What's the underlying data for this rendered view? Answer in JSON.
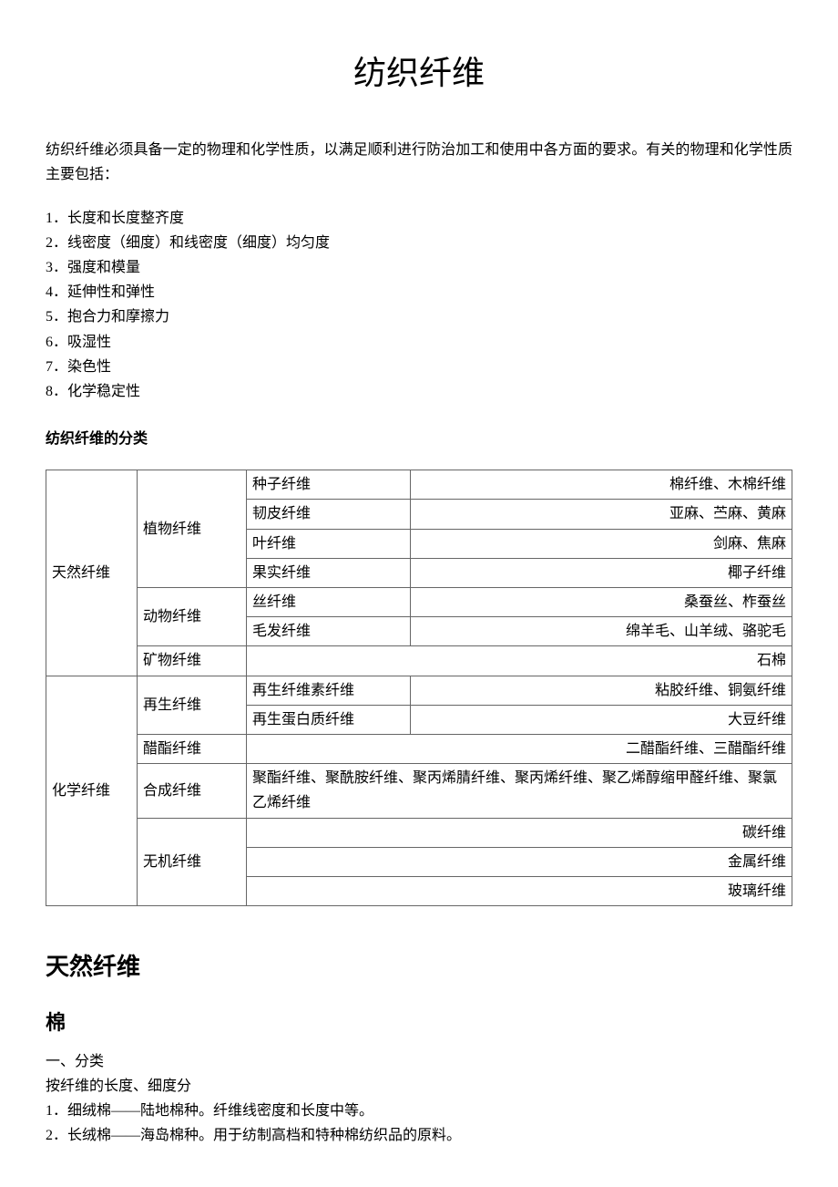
{
  "title": "纺织纤维",
  "intro": "纺织纤维必须具备一定的物理和化学性质，以满足顺利进行防治加工和使用中各方面的要求。有关的物理和化学性质主要包括：",
  "properties": [
    "1．长度和长度整齐度",
    "2．线密度（细度）和线密度（细度）均匀度",
    "3．强度和模量",
    "4．延伸性和弹性",
    "5．抱合力和摩擦力",
    "6．吸湿性",
    "7．染色性",
    "8．化学稳定性"
  ],
  "classification_label": "纺织纤维的分类",
  "table": {
    "natural": {
      "label": "天然纤维",
      "plant": {
        "label": "植物纤维",
        "rows": [
          {
            "c": "种子纤维",
            "d": "棉纤维、木棉纤维"
          },
          {
            "c": "韧皮纤维",
            "d": "亚麻、苎麻、黄麻"
          },
          {
            "c": "叶纤维",
            "d": "剑麻、焦麻"
          },
          {
            "c": "果实纤维",
            "d": "椰子纤维"
          }
        ]
      },
      "animal": {
        "label": "动物纤维",
        "rows": [
          {
            "c": "丝纤维",
            "d": "桑蚕丝、柞蚕丝"
          },
          {
            "c": "毛发纤维",
            "d": "绵羊毛、山羊绒、骆驼毛"
          }
        ]
      },
      "mineral": {
        "label": "矿物纤维",
        "d": "石棉"
      }
    },
    "chemical": {
      "label": "化学纤维",
      "regen": {
        "label": "再生纤维",
        "rows": [
          {
            "c": "再生纤维素纤维",
            "d": "粘胶纤维、铜氨纤维"
          },
          {
            "c": "再生蛋白质纤维",
            "d": "大豆纤维"
          }
        ]
      },
      "acetate": {
        "label": "醋酯纤维",
        "d": "二醋酯纤维、三醋酯纤维"
      },
      "synthetic": {
        "label": "合成纤维",
        "d": "聚酯纤维、聚酰胺纤维、聚丙烯腈纤维、聚丙烯纤维、聚乙烯醇缩甲醛纤维、聚氯乙烯纤维"
      },
      "inorganic": {
        "label": "无机纤维",
        "rows": [
          {
            "d": "碳纤维"
          },
          {
            "d": "金属纤维"
          },
          {
            "d": "玻璃纤维"
          }
        ]
      }
    }
  },
  "section_natural": "天然纤维",
  "section_cotton": "棉",
  "cotton_lines": [
    "一、分类",
    "按纤维的长度、细度分",
    "1．细绒棉——陆地棉种。纤维线密度和长度中等。",
    "2．长绒棉——海岛棉种。用于纺制高档和特种棉纺织品的原料。"
  ]
}
